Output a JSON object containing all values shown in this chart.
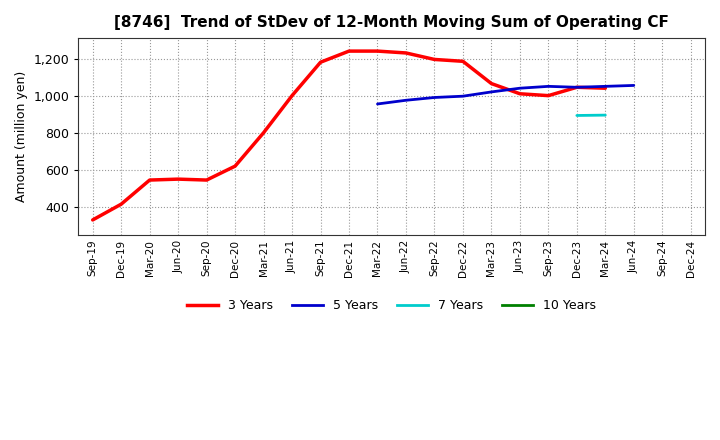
{
  "title": "[8746]  Trend of StDev of 12-Month Moving Sum of Operating CF",
  "ylabel": "Amount (million yen)",
  "fig_background": "#ffffff",
  "plot_background": "#ffffff",
  "x_labels": [
    "Sep-19",
    "Dec-19",
    "Mar-20",
    "Jun-20",
    "Sep-20",
    "Dec-20",
    "Mar-21",
    "Jun-21",
    "Sep-21",
    "Dec-21",
    "Mar-22",
    "Jun-22",
    "Sep-22",
    "Dec-22",
    "Mar-23",
    "Jun-23",
    "Sep-23",
    "Dec-23",
    "Mar-24",
    "Jun-24",
    "Sep-24",
    "Dec-24"
  ],
  "ylim": [
    250,
    1310
  ],
  "yticks": [
    400,
    600,
    800,
    1000,
    1200
  ],
  "series": {
    "3yr": {
      "color": "#ff0000",
      "label": "3 Years",
      "linewidth": 2.5,
      "values": [
        330,
        415,
        545,
        550,
        545,
        620,
        800,
        1000,
        1180,
        1240,
        1240,
        1230,
        1195,
        1185,
        1065,
        1010,
        1000,
        1045,
        1040,
        null,
        null,
        null
      ]
    },
    "5yr": {
      "color": "#0000cc",
      "label": "5 Years",
      "linewidth": 2.0,
      "values": [
        null,
        null,
        null,
        null,
        null,
        null,
        null,
        null,
        null,
        null,
        955,
        975,
        990,
        997,
        1020,
        1040,
        1050,
        1045,
        1050,
        1055,
        null,
        null
      ]
    },
    "7yr": {
      "color": "#00cccc",
      "label": "7 Years",
      "linewidth": 2.0,
      "values": [
        null,
        null,
        null,
        null,
        null,
        null,
        null,
        null,
        null,
        null,
        null,
        null,
        null,
        null,
        null,
        null,
        null,
        893,
        895,
        null,
        null,
        null
      ]
    },
    "10yr": {
      "color": "#008000",
      "label": "10 Years",
      "linewidth": 2.0,
      "values": [
        null,
        null,
        null,
        null,
        null,
        null,
        null,
        null,
        null,
        null,
        null,
        null,
        null,
        null,
        null,
        null,
        null,
        null,
        null,
        null,
        null,
        null
      ]
    }
  },
  "legend": {
    "entries": [
      "3 Years",
      "5 Years",
      "7 Years",
      "10 Years"
    ],
    "colors": [
      "#ff0000",
      "#0000cc",
      "#00cccc",
      "#008000"
    ]
  },
  "grid_color": "#999999",
  "grid_linestyle": ":",
  "grid_linewidth": 0.8
}
